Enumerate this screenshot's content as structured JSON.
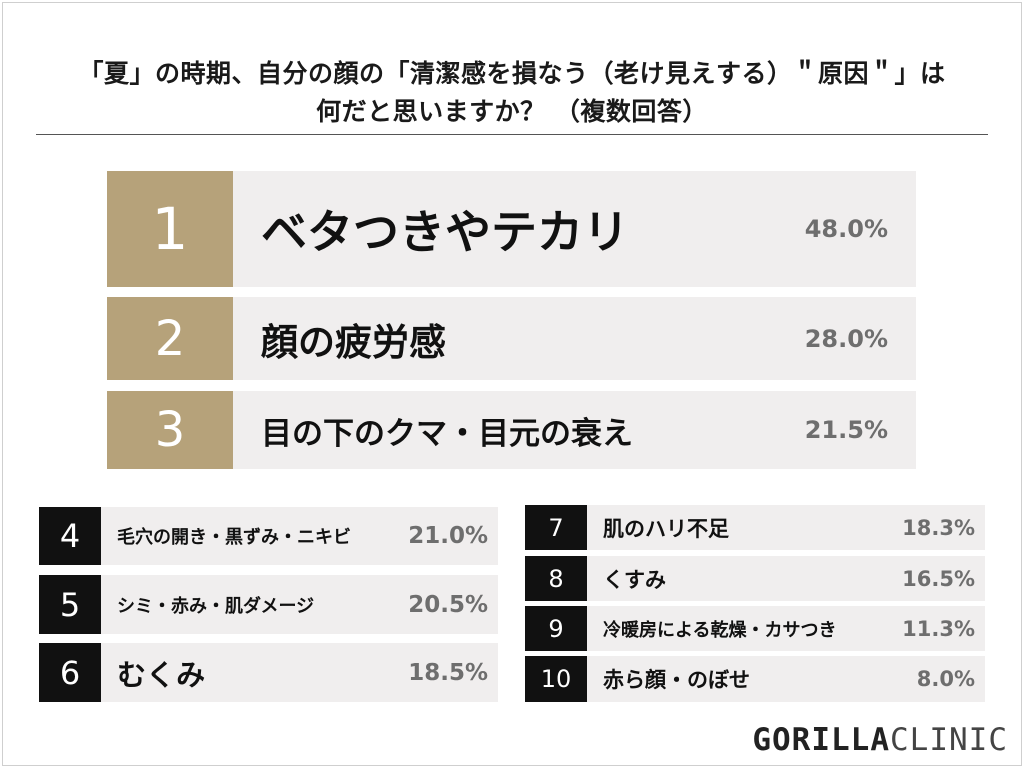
{
  "title": {
    "line1": "「夏」の時期、自分の顔の「清潔感を損なう（老け見えする）＂原因＂」は",
    "line2": "何だと思いますか？ （複数回答）"
  },
  "chart_data": {
    "type": "table",
    "items": [
      {
        "rank": "1",
        "label": "ベタつきやテカリ",
        "value": "48.0%"
      },
      {
        "rank": "2",
        "label": "顔の疲労感",
        "value": "28.0%"
      },
      {
        "rank": "3",
        "label": "目の下のクマ・目元の衰え",
        "value": "21.5%"
      },
      {
        "rank": "4",
        "label": "毛穴の開き・黒ずみ・ニキビ",
        "value": "21.0%"
      },
      {
        "rank": "5",
        "label": "シミ・赤み・肌ダメージ",
        "value": "20.5%"
      },
      {
        "rank": "6",
        "label": "むくみ",
        "value": "18.5%"
      },
      {
        "rank": "7",
        "label": "肌のハリ不足",
        "value": "18.3%"
      },
      {
        "rank": "8",
        "label": "くすみ",
        "value": "16.5%"
      },
      {
        "rank": "9",
        "label": "冷暖房による乾燥・カサつき",
        "value": "11.3%"
      },
      {
        "rank": "10",
        "label": "赤ら顔・のぼせ",
        "value": "8.0%"
      }
    ]
  },
  "logo": {
    "bold": "GORILLA",
    "light": "CLINIC"
  },
  "colors": {
    "gold": "#b6a27a",
    "black": "#111111",
    "bar": "#f0eeee",
    "pct": "#6e6e6e"
  }
}
